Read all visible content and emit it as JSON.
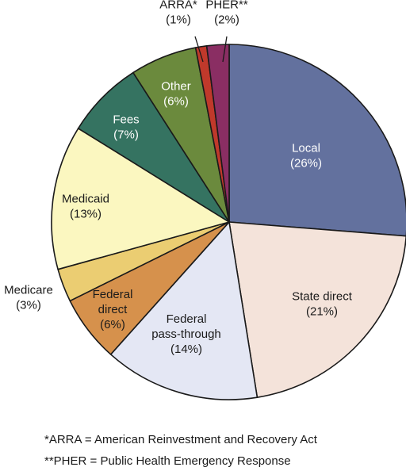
{
  "chart_data": {
    "type": "pie",
    "title": "",
    "slices": [
      {
        "label": "Local",
        "pct_label": "(26%)",
        "value": 26,
        "color": "#63719e",
        "text_color": "#ffffff"
      },
      {
        "label": "State direct",
        "pct_label": "(21%)",
        "value": 21,
        "color": "#f4e3da",
        "text_color": "#1a1a1a"
      },
      {
        "label": "Federal pass-through",
        "pct_label": "(14%)",
        "value": 14,
        "color": "#e4e7f4",
        "text_color": "#1a1a1a"
      },
      {
        "label": "Federal direct",
        "pct_label": "(6%)",
        "value": 6,
        "color": "#d6914c",
        "text_color": "#1a1a1a"
      },
      {
        "label": "Medicare",
        "pct_label": "(3%)",
        "value": 3,
        "color": "#ebcd72",
        "text_color": "#1a1a1a"
      },
      {
        "label": "Medicaid",
        "pct_label": "(13%)",
        "value": 13,
        "color": "#fbf7c0",
        "text_color": "#1a1a1a"
      },
      {
        "label": "Fees",
        "pct_label": "(7%)",
        "value": 7,
        "color": "#357361",
        "text_color": "#ffffff"
      },
      {
        "label": "Other",
        "pct_label": "(6%)",
        "value": 6,
        "color": "#6b8a3d",
        "text_color": "#ffffff"
      },
      {
        "label": "ARRA*",
        "pct_label": "(1%)",
        "value": 1,
        "color": "#c0392b",
        "text_color": "#1a1a1a"
      },
      {
        "label": "PHER**",
        "pct_label": "(2%)",
        "value": 2,
        "color": "#8a2e63",
        "text_color": "#1a1a1a"
      }
    ],
    "footnotes": [
      "*ARRA = American Reinvestment and Recovery Act",
      "**PHER = Public Health Emergency Response"
    ]
  }
}
